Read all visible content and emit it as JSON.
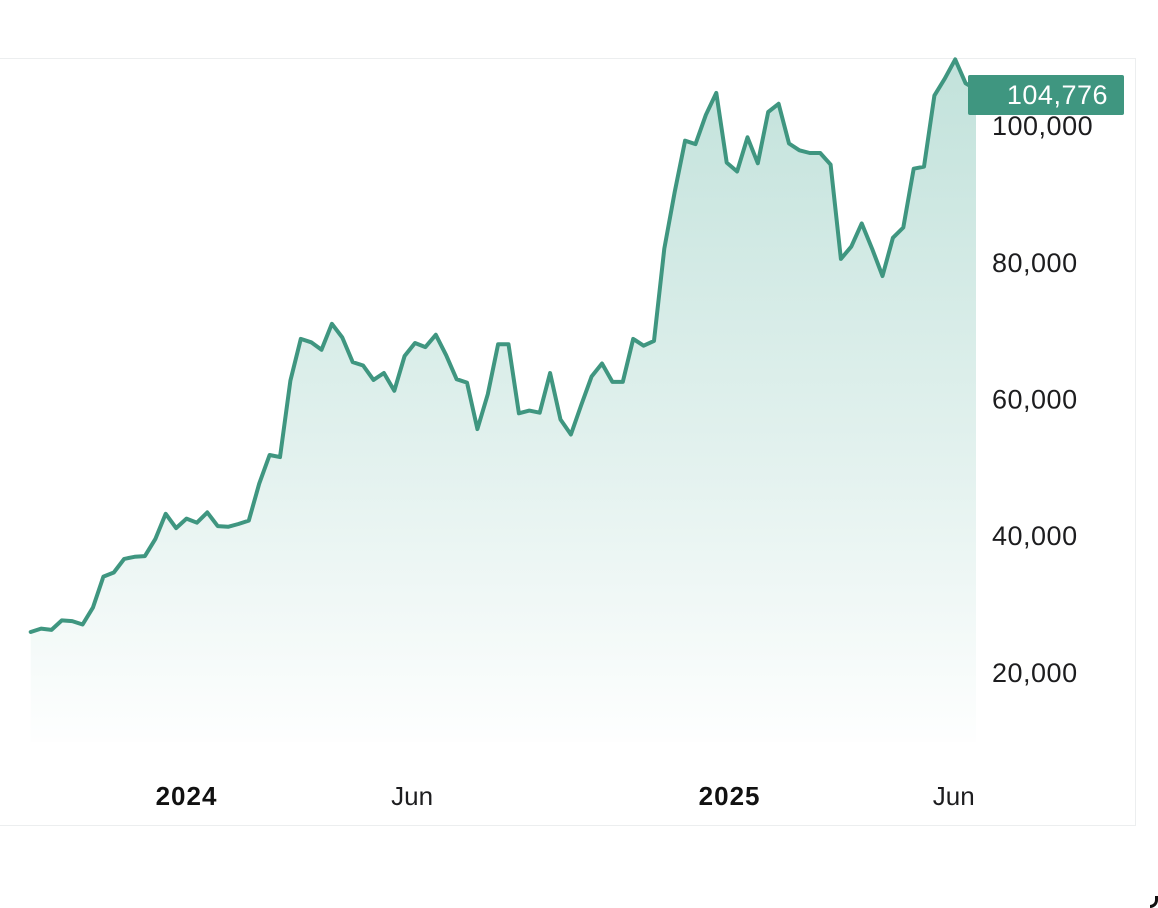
{
  "chart_data": {
    "type": "area",
    "y_ticks": [
      {
        "value": 20000,
        "label": "20,000"
      },
      {
        "value": 40000,
        "label": "40,000"
      },
      {
        "value": 60000,
        "label": "60,000"
      },
      {
        "value": 80000,
        "label": "80,000"
      },
      {
        "value": 100000,
        "label": "100,000"
      }
    ],
    "x_ticks": [
      {
        "date": "2024-01-01",
        "label": "2024",
        "bold": true
      },
      {
        "date": "2024-06-01",
        "label": "Jun",
        "bold": false
      },
      {
        "date": "2025-01-01",
        "label": "2025",
        "bold": true
      },
      {
        "date": "2025-06-01",
        "label": "Jun",
        "bold": false
      }
    ],
    "last_value_label": "104,776",
    "ylim": [
      11000,
      109000
    ],
    "line_color": "#3f9680",
    "fill_color": "#c2e2db",
    "tag_color": "#3f9680",
    "series": [
      {
        "values": [
          [
            "2023-09-18",
            25900
          ],
          [
            "2023-09-25",
            26400
          ],
          [
            "2023-10-02",
            26200
          ],
          [
            "2023-10-09",
            27600
          ],
          [
            "2023-10-16",
            27500
          ],
          [
            "2023-10-23",
            27000
          ],
          [
            "2023-10-30",
            29500
          ],
          [
            "2023-11-06",
            34000
          ],
          [
            "2023-11-13",
            34600
          ],
          [
            "2023-11-20",
            36600
          ],
          [
            "2023-11-27",
            36900
          ],
          [
            "2023-12-04",
            37000
          ],
          [
            "2023-12-11",
            39500
          ],
          [
            "2023-12-18",
            43200
          ],
          [
            "2023-12-25",
            41100
          ],
          [
            "2024-01-01",
            42500
          ],
          [
            "2024-01-08",
            41900
          ],
          [
            "2024-01-15",
            43400
          ],
          [
            "2024-01-22",
            41400
          ],
          [
            "2024-01-29",
            41300
          ],
          [
            "2024-02-05",
            41700
          ],
          [
            "2024-02-12",
            42200
          ],
          [
            "2024-02-19",
            47600
          ],
          [
            "2024-02-26",
            51800
          ],
          [
            "2024-03-04",
            51500
          ],
          [
            "2024-03-11",
            62700
          ],
          [
            "2024-03-18",
            68800
          ],
          [
            "2024-03-25",
            68300
          ],
          [
            "2024-04-01",
            67200
          ],
          [
            "2024-04-08",
            71000
          ],
          [
            "2024-04-15",
            69000
          ],
          [
            "2024-04-22",
            65400
          ],
          [
            "2024-04-29",
            64900
          ],
          [
            "2024-05-06",
            62800
          ],
          [
            "2024-05-13",
            63800
          ],
          [
            "2024-05-20",
            61200
          ],
          [
            "2024-05-27",
            66300
          ],
          [
            "2024-06-03",
            68200
          ],
          [
            "2024-06-10",
            67600
          ],
          [
            "2024-06-17",
            69400
          ],
          [
            "2024-06-24",
            66400
          ],
          [
            "2024-07-01",
            62900
          ],
          [
            "2024-07-08",
            62400
          ],
          [
            "2024-07-15",
            55600
          ],
          [
            "2024-07-22",
            60700
          ],
          [
            "2024-07-29",
            68000
          ],
          [
            "2024-08-05",
            68000
          ],
          [
            "2024-08-12",
            57900
          ],
          [
            "2024-08-19",
            58300
          ],
          [
            "2024-08-26",
            58000
          ],
          [
            "2024-09-02",
            63800
          ],
          [
            "2024-09-09",
            57000
          ],
          [
            "2024-09-16",
            54800
          ],
          [
            "2024-09-23",
            59100
          ],
          [
            "2024-09-30",
            63300
          ],
          [
            "2024-10-07",
            65200
          ],
          [
            "2024-10-14",
            62500
          ],
          [
            "2024-10-21",
            62500
          ],
          [
            "2024-10-28",
            68800
          ],
          [
            "2024-11-04",
            67800
          ],
          [
            "2024-11-11",
            68500
          ],
          [
            "2024-11-18",
            82000
          ],
          [
            "2024-11-25",
            90300
          ],
          [
            "2024-12-02",
            97800
          ],
          [
            "2024-12-09",
            97300
          ],
          [
            "2024-12-16",
            101600
          ],
          [
            "2024-12-23",
            104800
          ],
          [
            "2024-12-30",
            94600
          ],
          [
            "2025-01-06",
            93300
          ],
          [
            "2025-01-13",
            98300
          ],
          [
            "2025-01-20",
            94500
          ],
          [
            "2025-01-27",
            102000
          ],
          [
            "2025-02-03",
            103200
          ],
          [
            "2025-02-10",
            97400
          ],
          [
            "2025-02-17",
            96400
          ],
          [
            "2025-02-24",
            96000
          ],
          [
            "2025-03-03",
            96000
          ],
          [
            "2025-03-10",
            94300
          ],
          [
            "2025-03-17",
            80500
          ],
          [
            "2025-03-24",
            82300
          ],
          [
            "2025-03-31",
            85700
          ],
          [
            "2025-04-07",
            82000
          ],
          [
            "2025-04-14",
            78000
          ],
          [
            "2025-04-21",
            83600
          ],
          [
            "2025-04-28",
            85100
          ],
          [
            "2025-05-05",
            93700
          ],
          [
            "2025-05-12",
            94000
          ],
          [
            "2025-05-19",
            104400
          ],
          [
            "2025-05-26",
            106900
          ],
          [
            "2025-06-02",
            109700
          ],
          [
            "2025-06-09",
            106200
          ],
          [
            "2025-06-16",
            105300
          ]
        ]
      }
    ]
  }
}
